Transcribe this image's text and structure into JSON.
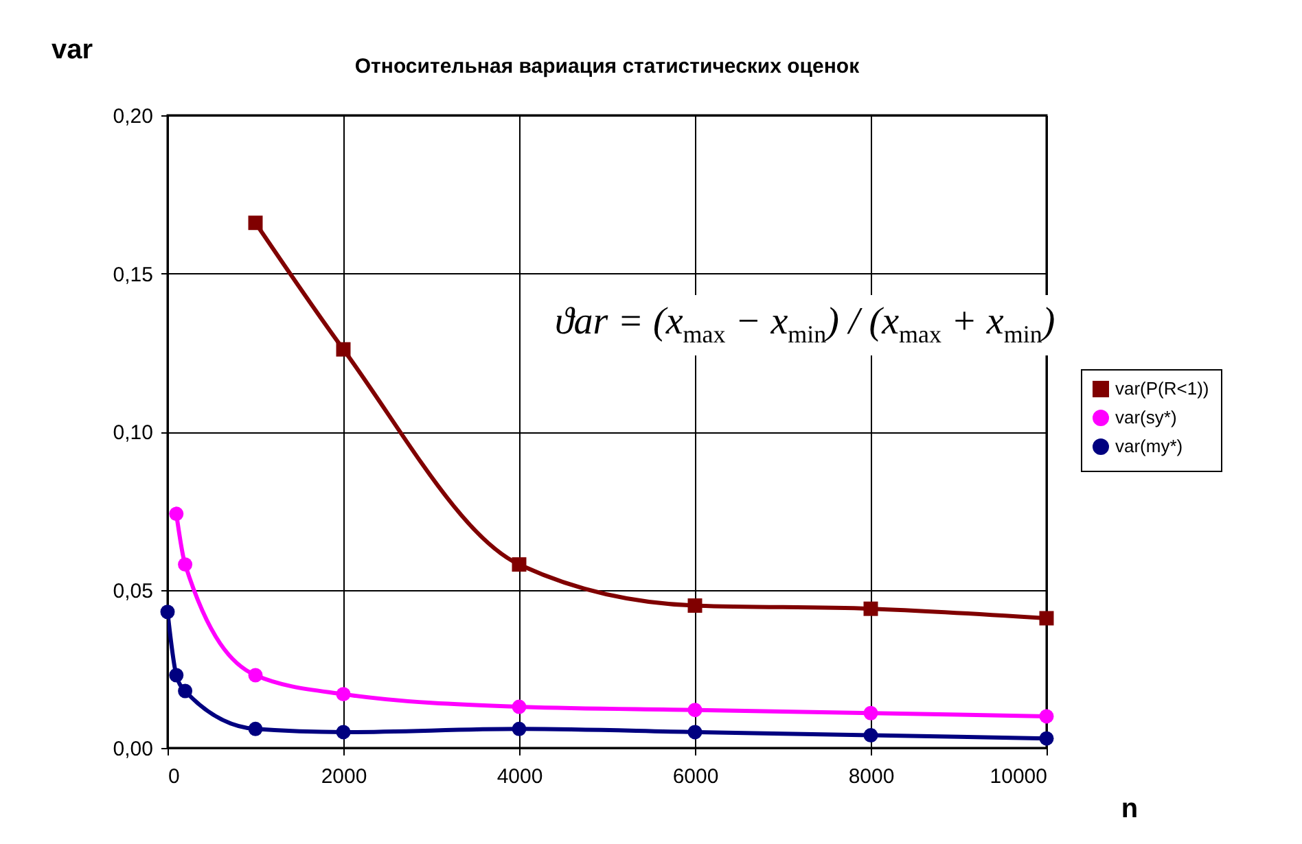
{
  "chart_data": {
    "type": "line",
    "title": "Относительная вариация статистических оценок",
    "xlabel": "n",
    "ylabel": "var",
    "annotations": [
      "ϑar = (x$_{max}$ − x$_{min}$) / (x$_{max}$ + x$_{min}$)"
    ],
    "series": [
      {
        "name": "var(P(R<1))",
        "color": "#800000",
        "marker": "square",
        "x": [
          1000,
          2000,
          4000,
          6000,
          8000,
          10000
        ],
        "values": [
          0.166,
          0.126,
          0.058,
          0.045,
          0.044,
          0.041
        ]
      },
      {
        "name": "var(sy*)",
        "color": "#ff00ff",
        "marker": "circle",
        "x": [
          100,
          200,
          1000,
          2000,
          4000,
          6000,
          8000,
          10000
        ],
        "values": [
          0.074,
          0.058,
          0.023,
          0.017,
          0.013,
          0.012,
          0.011,
          0.01
        ]
      },
      {
        "name": "var(my*)",
        "color": "#000080",
        "marker": "circle",
        "x": [
          0,
          100,
          200,
          1000,
          2000,
          4000,
          6000,
          8000,
          10000
        ],
        "values": [
          0.043,
          0.023,
          0.018,
          0.006,
          0.005,
          0.006,
          0.005,
          0.004,
          0.003
        ]
      }
    ],
    "xlim": [
      0,
      10000
    ],
    "xticks": [
      0,
      2000,
      4000,
      6000,
      8000,
      10000
    ],
    "ylim": [
      0,
      0.2
    ],
    "yticks": [
      {
        "value": 0,
        "label": "0,00"
      },
      {
        "value": 0.05,
        "label": "0,05"
      },
      {
        "value": 0.1,
        "label": "0,10"
      },
      {
        "value": 0.15,
        "label": "0,15"
      },
      {
        "value": 0.2,
        "label": "0,20"
      }
    ],
    "grid": true,
    "legend": "right",
    "line_style": "solid"
  }
}
